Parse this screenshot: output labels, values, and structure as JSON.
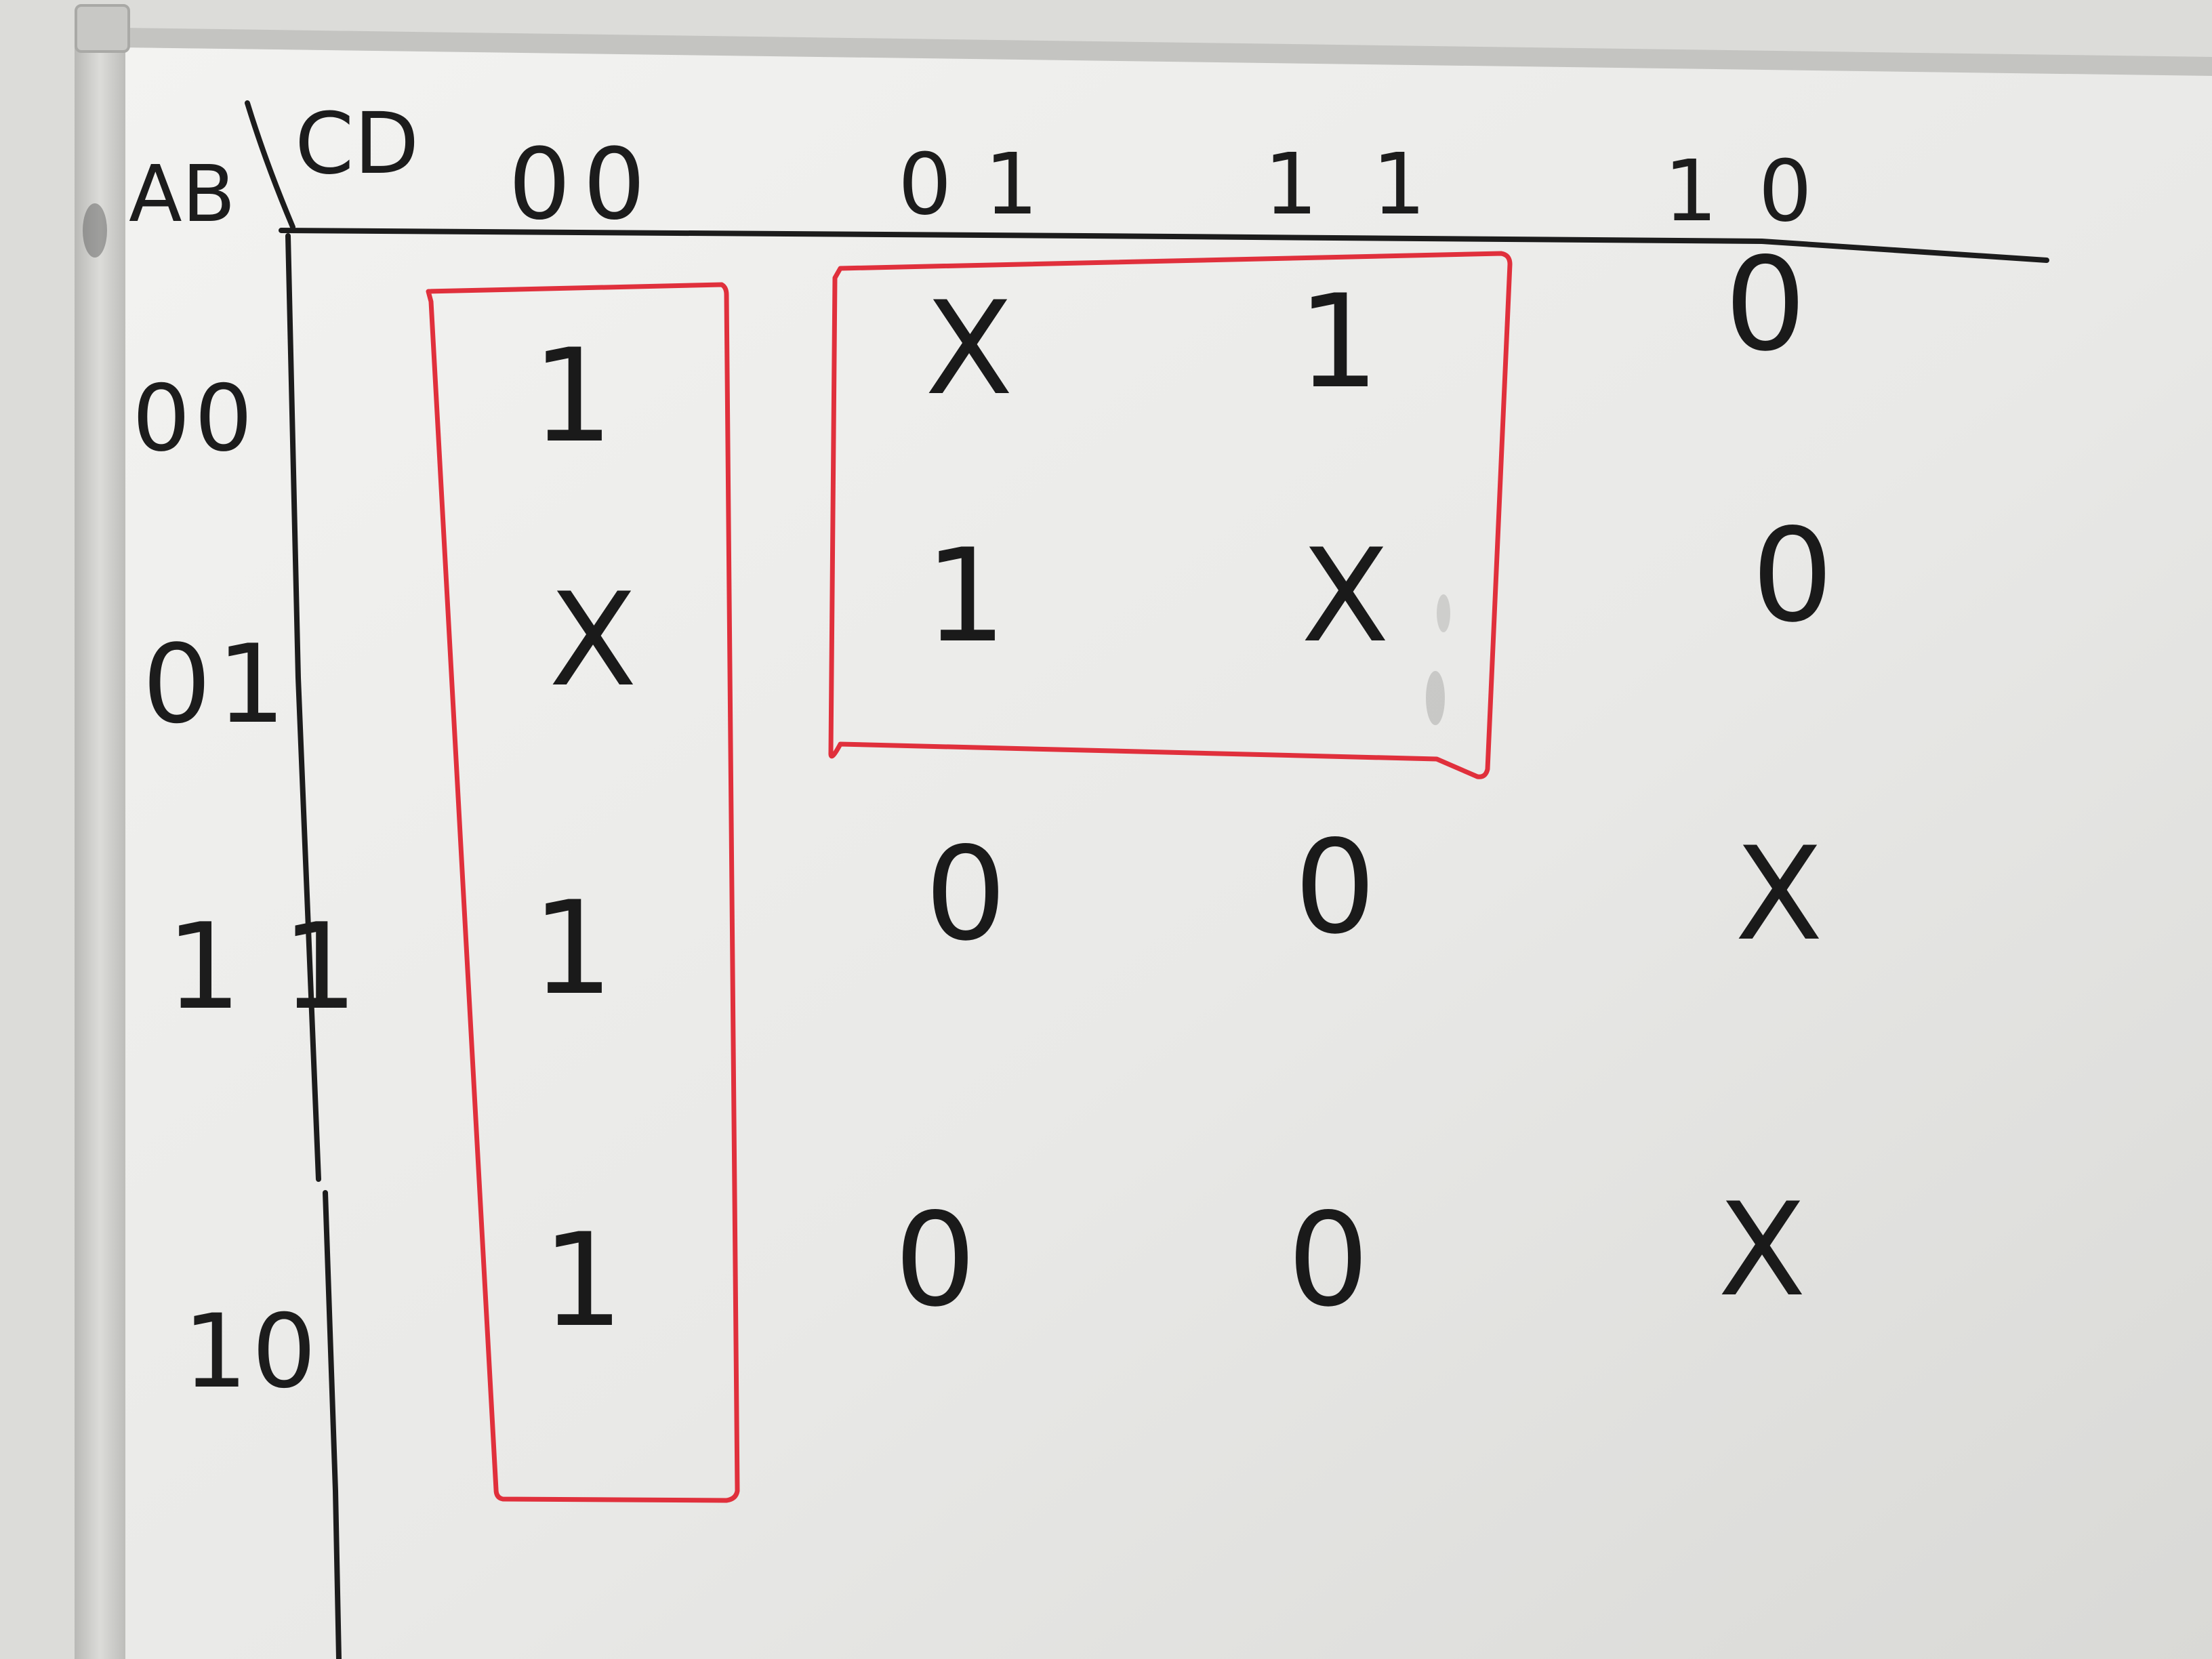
{
  "kmap": {
    "row_variables": "AB",
    "column_variables": "CD",
    "column_headers": [
      "00",
      "01",
      "11",
      "10"
    ],
    "row_headers": [
      "00",
      "01",
      "11",
      "10"
    ],
    "cells": [
      [
        "1",
        "X",
        "1",
        "0"
      ],
      [
        "X",
        "1",
        "X",
        "0"
      ],
      [
        "1",
        "0",
        "0",
        "X"
      ],
      [
        "1",
        "0",
        "0",
        "X"
      ]
    ],
    "groupings": [
      {
        "covers": "column CD=00, all rows",
        "color": "#e0303c"
      },
      {
        "covers": "columns CD=01,11, rows AB=00,01",
        "color": "#e0303c"
      }
    ],
    "ink_color": "#1c1c1c",
    "board_color": "#ececea",
    "frame_color": "#c9c9c6"
  }
}
